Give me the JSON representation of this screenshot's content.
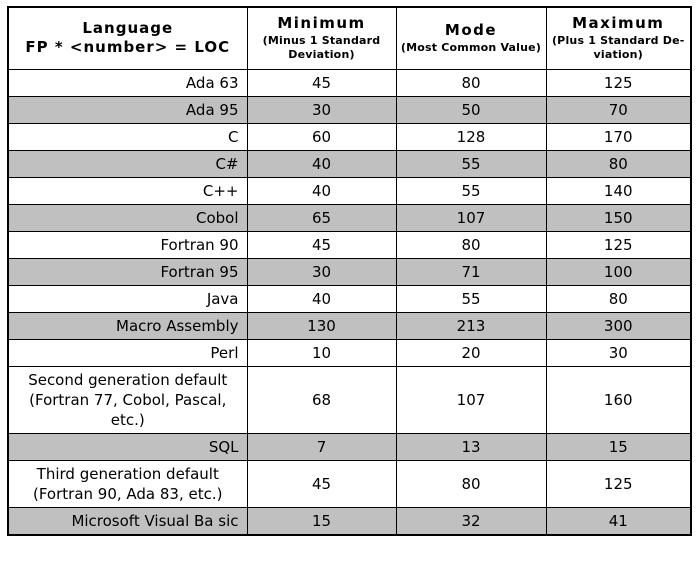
{
  "table": {
    "header": {
      "language": {
        "title": "Language",
        "formula": "FP * <number> = LOC"
      },
      "minimum": {
        "title": "Minimum",
        "subtitle": "(Minus 1 Standard Deviation)"
      },
      "mode": {
        "title": "Mode",
        "subtitle": "(Most Common Value)"
      },
      "maximum": {
        "title": "Maximum",
        "subtitle": "(Plus 1 Standard De-viation)"
      }
    },
    "rows": [
      {
        "language": "Ada 63",
        "min": "45",
        "mode": "80",
        "max": "125",
        "shaded": false,
        "align": "right"
      },
      {
        "language": "Ada 95",
        "min": "30",
        "mode": "50",
        "max": "70",
        "shaded": true,
        "align": "right"
      },
      {
        "language": "C",
        "min": "60",
        "mode": "128",
        "max": "170",
        "shaded": false,
        "align": "right"
      },
      {
        "language": "C#",
        "min": "40",
        "mode": "55",
        "max": "80",
        "shaded": true,
        "align": "right"
      },
      {
        "language": "C++",
        "min": "40",
        "mode": "55",
        "max": "140",
        "shaded": false,
        "align": "right"
      },
      {
        "language": "Cobol",
        "min": "65",
        "mode": "107",
        "max": "150",
        "shaded": true,
        "align": "right"
      },
      {
        "language": "Fortran 90",
        "min": "45",
        "mode": "80",
        "max": "125",
        "shaded": false,
        "align": "right"
      },
      {
        "language": "Fortran 95",
        "min": "30",
        "mode": "71",
        "max": "100",
        "shaded": true,
        "align": "right"
      },
      {
        "language": "Java",
        "min": "40",
        "mode": "55",
        "max": "80",
        "shaded": false,
        "align": "right"
      },
      {
        "language": "Macro Assembly",
        "min": "130",
        "mode": "213",
        "max": "300",
        "shaded": true,
        "align": "right"
      },
      {
        "language": "Perl",
        "min": "10",
        "mode": "20",
        "max": "30",
        "shaded": false,
        "align": "right"
      },
      {
        "language": "Second generation default (Fortran 77, Cobol, Pascal, etc.)",
        "min": "68",
        "mode": "107",
        "max": "160",
        "shaded": false,
        "align": "center"
      },
      {
        "language": "SQL",
        "min": "7",
        "mode": "13",
        "max": "15",
        "shaded": true,
        "align": "right"
      },
      {
        "language": "Third generation default (Fortran 90, Ada 83, etc.)",
        "min": "45",
        "mode": "80",
        "max": "125",
        "shaded": false,
        "align": "center"
      },
      {
        "language": "Microsoft Visual Ba sic",
        "min": "15",
        "mode": "32",
        "max": "41",
        "shaded": true,
        "align": "right"
      }
    ]
  }
}
